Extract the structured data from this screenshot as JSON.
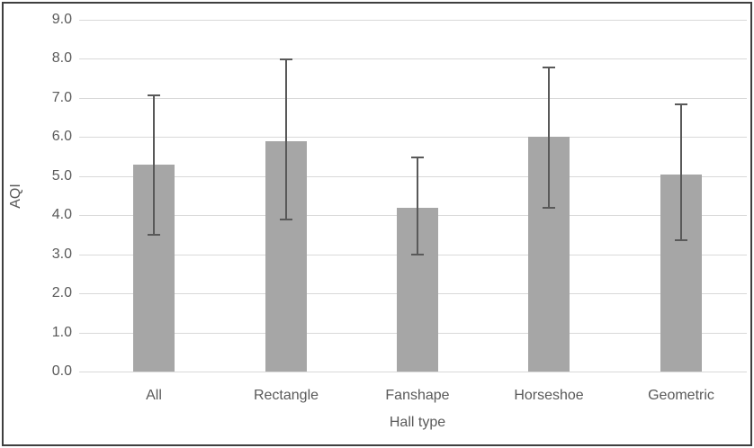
{
  "chart_data": {
    "type": "bar",
    "title": "",
    "xlabel": "Hall type",
    "ylabel": "AQI",
    "categories": [
      "All",
      "Rectangle",
      "Fanshape",
      "Horseshoe",
      "Geometric"
    ],
    "values": [
      5.3,
      5.9,
      4.2,
      6.0,
      5.05
    ],
    "error_low": [
      3.5,
      3.9,
      3.0,
      4.2,
      3.35
    ],
    "error_high": [
      7.1,
      8.0,
      5.5,
      7.8,
      6.85
    ],
    "ylim": [
      0,
      9
    ],
    "ytick_labels": [
      "0.0",
      "1.0",
      "2.0",
      "3.0",
      "4.0",
      "5.0",
      "6.0",
      "7.0",
      "8.0",
      "9.0"
    ],
    "grid": true,
    "legend": "none",
    "bar_color": "#a6a6a6",
    "error_color": "#595959",
    "gridline_color": "#d9d9d9",
    "text_color": "#595959",
    "border_color": "#3f3f3f",
    "background": "#ffffff"
  }
}
